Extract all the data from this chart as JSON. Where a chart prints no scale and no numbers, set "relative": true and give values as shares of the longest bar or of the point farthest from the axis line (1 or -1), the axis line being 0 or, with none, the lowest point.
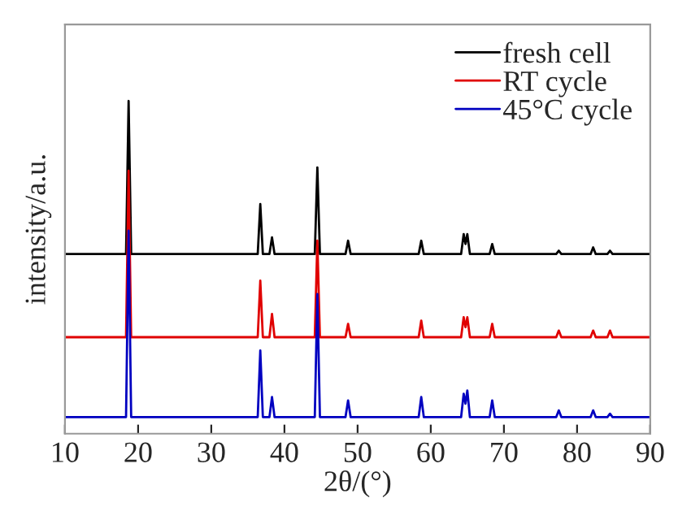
{
  "chart_data": {
    "type": "line",
    "relative": true,
    "xlabel": "2θ/(°)",
    "ylabel": "intensity/a.u.",
    "xlim": [
      10,
      90
    ],
    "xticks": [
      10,
      20,
      30,
      40,
      50,
      60,
      70,
      80,
      90
    ],
    "legend": "top right",
    "grid": false,
    "x": [
      10,
      18.35,
      18.7,
      19.05,
      36.35,
      36.7,
      37.05,
      37.95,
      38.3,
      38.65,
      44.15,
      44.5,
      44.85,
      48.35,
      48.7,
      49.05,
      58.35,
      58.7,
      59.05,
      64.15,
      64.5,
      64.75,
      65.0,
      65.35,
      68.05,
      68.4,
      68.75,
      77.15,
      77.5,
      77.85,
      81.85,
      82.2,
      82.55,
      84.15,
      84.5,
      84.85,
      90
    ],
    "series": [
      {
        "name": "fresh cell",
        "color": "#000000",
        "values": [
          0.54,
          0.54,
          1.0,
          0.54,
          0.54,
          0.69,
          0.54,
          0.54,
          0.59,
          0.54,
          0.54,
          0.8,
          0.54,
          0.54,
          0.58,
          0.54,
          0.54,
          0.58,
          0.54,
          0.54,
          0.6,
          0.57,
          0.6,
          0.54,
          0.54,
          0.57,
          0.54,
          0.54,
          0.55,
          0.54,
          0.54,
          0.56,
          0.54,
          0.54,
          0.55,
          0.54,
          0.54
        ]
      },
      {
        "name": "RT cycle",
        "color": "#e00000",
        "values": [
          0.29,
          0.29,
          0.79,
          0.29,
          0.29,
          0.46,
          0.29,
          0.29,
          0.36,
          0.29,
          0.29,
          0.58,
          0.29,
          0.29,
          0.33,
          0.29,
          0.29,
          0.34,
          0.29,
          0.29,
          0.35,
          0.32,
          0.35,
          0.29,
          0.29,
          0.33,
          0.29,
          0.29,
          0.31,
          0.29,
          0.29,
          0.31,
          0.29,
          0.29,
          0.31,
          0.29,
          0.29
        ]
      },
      {
        "name": "45°C cycle",
        "color": "#0000c0",
        "values": [
          0.05,
          0.05,
          0.61,
          0.05,
          0.05,
          0.25,
          0.05,
          0.05,
          0.11,
          0.05,
          0.05,
          0.42,
          0.05,
          0.05,
          0.1,
          0.05,
          0.05,
          0.11,
          0.05,
          0.05,
          0.12,
          0.09,
          0.13,
          0.05,
          0.05,
          0.1,
          0.05,
          0.05,
          0.07,
          0.05,
          0.05,
          0.07,
          0.05,
          0.05,
          0.06,
          0.05,
          0.05
        ]
      }
    ]
  }
}
